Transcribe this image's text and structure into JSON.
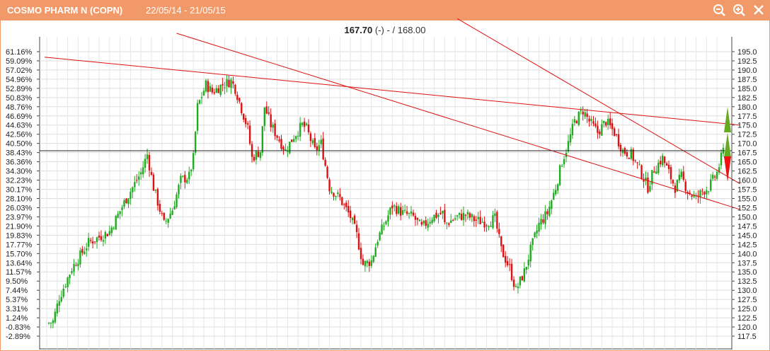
{
  "header": {
    "title": "COSMO PHARM N (COPN)",
    "date_range": "22/05/14 - 21/05/15",
    "icons": [
      "zoom-out-icon",
      "zoom-in-icon",
      "close-icon"
    ]
  },
  "quote": {
    "last": "167.70",
    "change": "(-)",
    "separator": "-",
    "sep2": "/",
    "prev": "168.00"
  },
  "colors": {
    "up": "#22aa22",
    "down": "#dd1111",
    "trend": "#dd1111",
    "grid": "#dddddd",
    "header": "#f2996a",
    "marker_up": "#66aa22",
    "marker_down": "#ee1111"
  },
  "chart_data": {
    "type": "candlestick",
    "price_axis": {
      "min": 115,
      "max": 197.5,
      "ticks": [
        "117.5",
        "120.0",
        "122.5",
        "125.0",
        "127.5",
        "130.0",
        "132.5",
        "135.0",
        "137.5",
        "140.0",
        "142.5",
        "145.0",
        "147.5",
        "150.0",
        "152.5",
        "155.0",
        "157.5",
        "160.0",
        "162.5",
        "165.0",
        "167.5",
        "170.0",
        "172.5",
        "175.0",
        "177.5",
        "180.0",
        "182.5",
        "185.0",
        "187.5",
        "190.0",
        "192.5",
        "195.0"
      ]
    },
    "percent_axis": {
      "ticks": [
        "-2.89%",
        "-0.83%",
        "1.24%",
        "3.31%",
        "5.37%",
        "7.44%",
        "9.50%",
        "11.57%",
        "13.64%",
        "15.70%",
        "17.77%",
        "19.83%",
        "21.90%",
        "23.97%",
        "26.03%",
        "28.10%",
        "30.17%",
        "32.23%",
        "34.30%",
        "36.36%",
        "38.43%",
        "40.50%",
        "42.56%",
        "44.63%",
        "46.69%",
        "48.76%",
        "50.83%",
        "52.89%",
        "54.96%",
        "57.02%",
        "59.09%",
        "61.16%"
      ]
    },
    "reference_line": 168.0,
    "sessions": 254,
    "close_path": [
      [
        0,
        121.0
      ],
      [
        3,
        121.5
      ],
      [
        6,
        128.0
      ],
      [
        12,
        136.0
      ],
      [
        20,
        143.0
      ],
      [
        30,
        146.0
      ],
      [
        38,
        155.0
      ],
      [
        45,
        162.0
      ],
      [
        48,
        167.0
      ],
      [
        51,
        158.0
      ],
      [
        56,
        148.0
      ],
      [
        60,
        152.0
      ],
      [
        64,
        160.0
      ],
      [
        68,
        161.0
      ],
      [
        70,
        166.0
      ],
      [
        72,
        180.0
      ],
      [
        76,
        186.0
      ],
      [
        79,
        184.0
      ],
      [
        84,
        186.0
      ],
      [
        88,
        187.0
      ],
      [
        90,
        185.0
      ],
      [
        96,
        174.0
      ],
      [
        98,
        166.0
      ],
      [
        102,
        168.0
      ],
      [
        104,
        180.0
      ],
      [
        107,
        175.0
      ],
      [
        110,
        172.0
      ],
      [
        114,
        168.0
      ],
      [
        118,
        172.0
      ],
      [
        122,
        175.0
      ],
      [
        124,
        174.0
      ],
      [
        128,
        168.0
      ],
      [
        131,
        170.0
      ],
      [
        135,
        158.0
      ],
      [
        140,
        155.0
      ],
      [
        145,
        150.0
      ],
      [
        148,
        145.0
      ],
      [
        151,
        137.0
      ],
      [
        155,
        138.0
      ],
      [
        158,
        144.0
      ],
      [
        162,
        149.0
      ],
      [
        165,
        153.0
      ],
      [
        170,
        151.0
      ],
      [
        175,
        150.0
      ],
      [
        179,
        147.0
      ],
      [
        184,
        150.0
      ],
      [
        189,
        151.0
      ],
      [
        194,
        147.0
      ],
      [
        199,
        149.0
      ],
      [
        204,
        146.0
      ],
      [
        209,
        148.0
      ],
      [
        214,
        150.0
      ],
      [
        218,
        142.0
      ],
      [
        222,
        135.0
      ],
      [
        226,
        128.0
      ],
      [
        230,
        133.0
      ],
      [
        234,
        140.0
      ],
      [
        238,
        148.0
      ],
      [
        242,
        150.0
      ],
      [
        246,
        147.0
      ],
      [
        249,
        148.0
      ],
      [
        252,
        140.0
      ],
      [
        253,
        157.0
      ],
      [
        254,
        165.0
      ]
    ],
    "close_path_part2": [
      [
        190,
        148.0
      ],
      [
        196,
        150.0
      ],
      [
        200,
        150.5
      ],
      [
        205,
        149.0
      ],
      [
        210,
        148.5
      ],
      [
        214,
        149.5
      ],
      [
        217,
        141.0
      ],
      [
        221,
        136.0
      ],
      [
        224,
        130.0
      ],
      [
        228,
        135.0
      ],
      [
        231,
        141.0
      ],
      [
        235,
        148.0
      ],
      [
        239,
        151.0
      ],
      [
        243,
        158.0
      ],
      [
        246,
        165.0
      ],
      [
        249,
        170.0
      ],
      [
        252,
        176.0
      ],
      [
        256,
        179.0
      ],
      [
        259,
        176.0
      ],
      [
        263,
        173.0
      ],
      [
        267,
        176.0
      ],
      [
        271,
        173.0
      ],
      [
        275,
        168.0
      ],
      [
        279,
        167.0
      ],
      [
        283,
        163.0
      ],
      [
        287,
        158.0
      ],
      [
        290,
        163.0
      ],
      [
        294,
        166.0
      ],
      [
        297,
        162.0
      ],
      [
        300,
        158.0
      ],
      [
        303,
        161.0
      ],
      [
        306,
        157.0
      ],
      [
        310,
        155.0
      ],
      [
        313,
        157.0
      ],
      [
        316,
        158.0
      ],
      [
        320,
        162.0
      ],
      [
        323,
        168.0
      ]
    ],
    "trend_lines": [
      {
        "from": [
          -1,
          193.5
        ],
        "to": [
          331,
          175.0
        ]
      },
      {
        "from": [
          62,
          200.0
        ],
        "to": [
          331,
          152.0
        ]
      },
      {
        "from": [
          196,
          204.0
        ],
        "to": [
          331,
          159.0
        ]
      }
    ],
    "arrows": [
      {
        "direction": "up",
        "value": 176.5
      },
      {
        "direction": "up",
        "value": 169.5
      },
      {
        "direction": "down",
        "value": 163.0
      }
    ]
  }
}
